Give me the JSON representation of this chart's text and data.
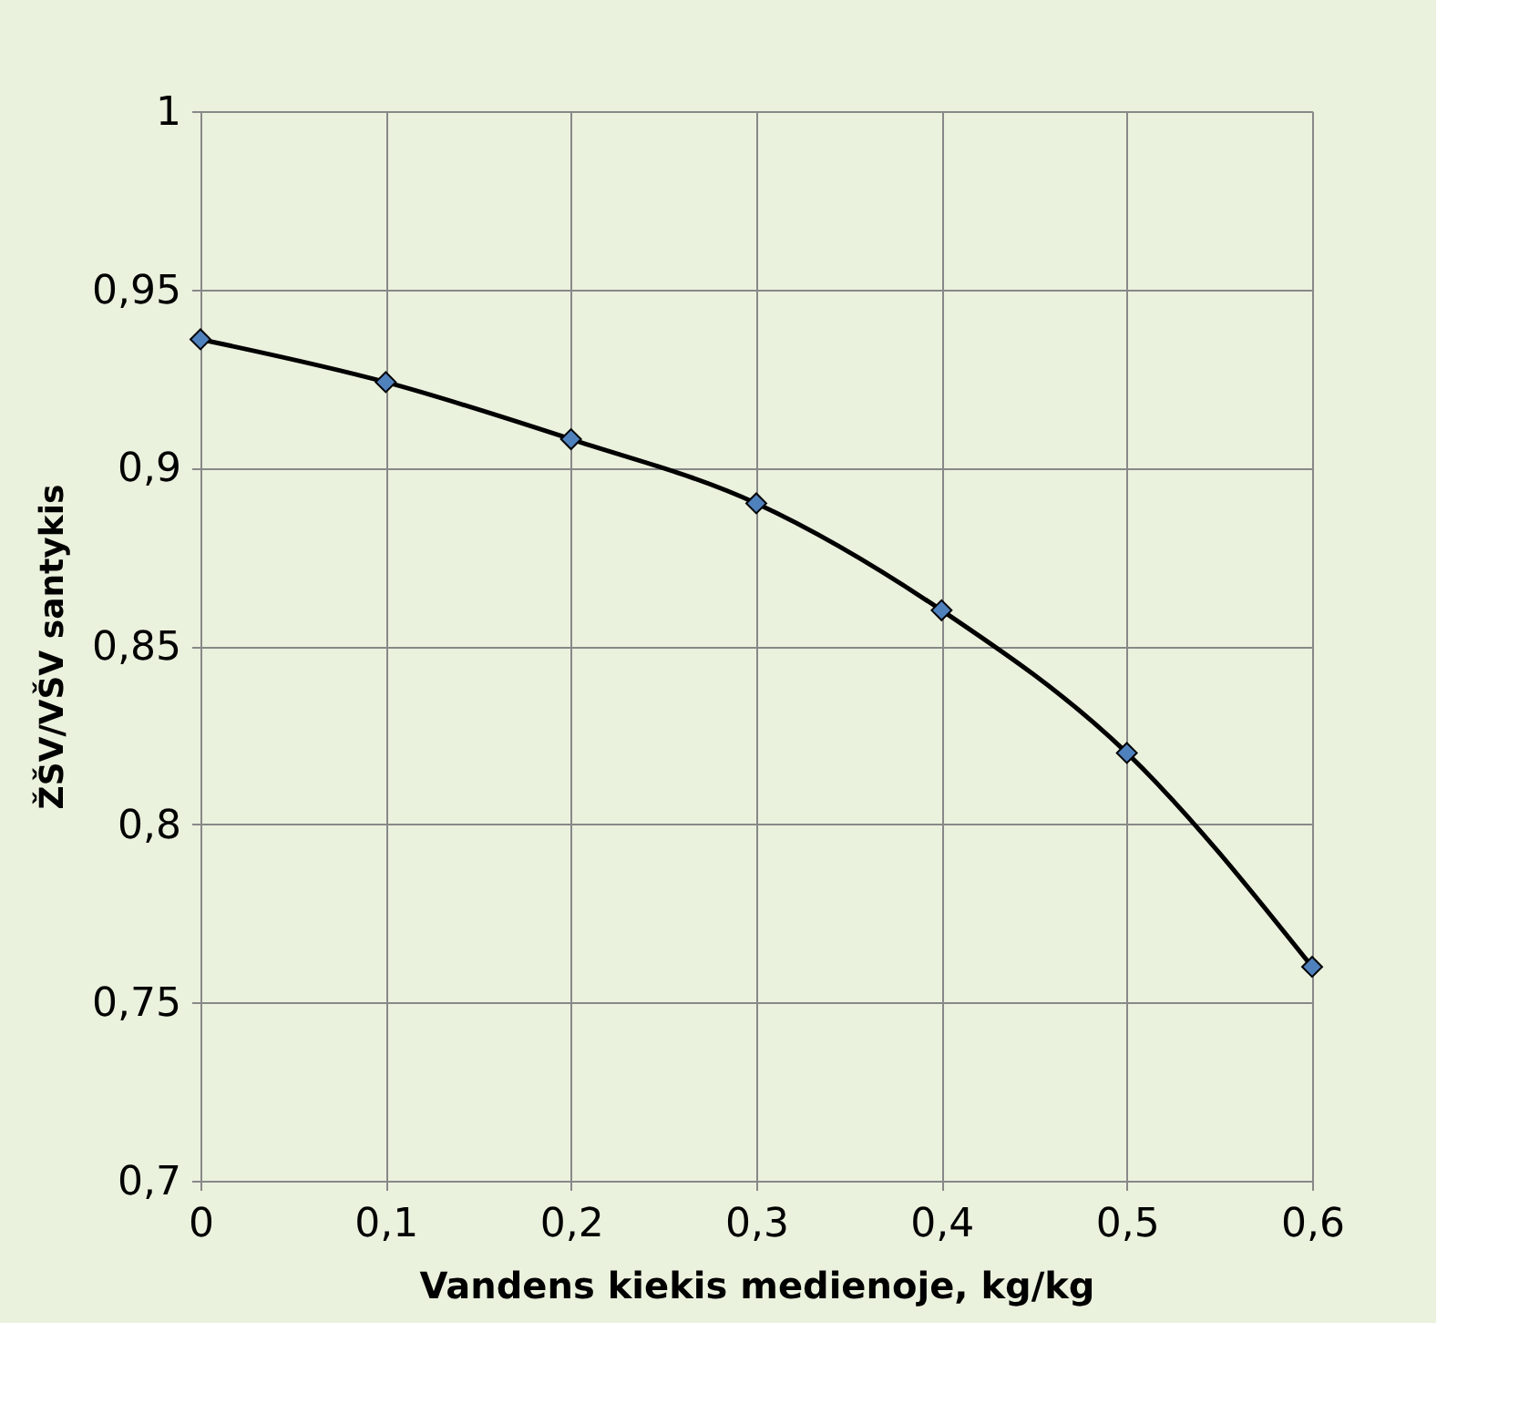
{
  "chart_data": {
    "type": "line",
    "xlabel": "Vandens kiekis medienoje, kg/kg",
    "ylabel": "ŽŠV/VŠV santykis",
    "x": [
      0,
      0.1,
      0.2,
      0.3,
      0.4,
      0.5,
      0.6
    ],
    "series": [
      {
        "color": "#4f81bd",
        "values": [
          0.936,
          0.924,
          0.908,
          0.89,
          0.86,
          0.82,
          0.76
        ]
      }
    ],
    "xlim": [
      0,
      0.6
    ],
    "xticks": [
      0,
      {
        "value": 0.1,
        "label": "0,1"
      },
      {
        "value": 0.2,
        "label": "0,2"
      },
      {
        "value": 0.3,
        "label": "0,3"
      },
      {
        "value": 0.4,
        "label": "0,4"
      },
      {
        "value": 0.5,
        "label": "0,5"
      },
      {
        "value": 0.6,
        "label": "0,6"
      }
    ],
    "ylim": [
      0.7,
      1
    ],
    "yticks": [
      {
        "value": 0.7,
        "label": "0,7"
      },
      {
        "value": 0.75,
        "label": "0,75"
      },
      {
        "value": 0.8,
        "label": "0,8"
      },
      {
        "value": 0.85,
        "label": "0,85"
      },
      {
        "value": 0.9,
        "label": "0,9"
      },
      {
        "value": 0.95,
        "label": "0,95"
      },
      1
    ],
    "grid": true,
    "marker": "diamond",
    "line_style": "solid"
  }
}
